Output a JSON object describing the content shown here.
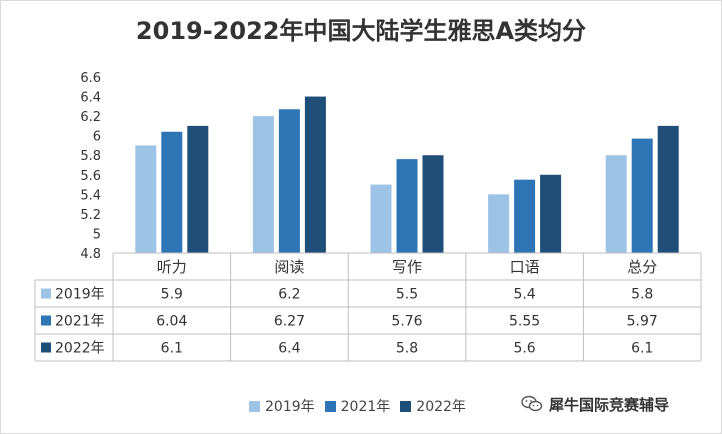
{
  "chart_data": {
    "type": "bar",
    "title": "2019-2022年中国大陆学生雅思A类均分",
    "categories": [
      "听力",
      "阅读",
      "写作",
      "口语",
      "总分"
    ],
    "series": [
      {
        "name": "2019年",
        "values": [
          5.9,
          6.2,
          5.5,
          5.4,
          5.8
        ],
        "color": "#9dc3e6",
        "labels": [
          "5.9",
          "6.2",
          "5.5",
          "5.4",
          "5.8"
        ]
      },
      {
        "name": "2021年",
        "values": [
          6.04,
          6.27,
          5.76,
          5.55,
          5.97
        ],
        "color": "#2e75b6",
        "labels": [
          "6.04",
          "6.27",
          "5.76",
          "5.55",
          "5.97"
        ]
      },
      {
        "name": "2022年",
        "values": [
          6.1,
          6.4,
          5.8,
          5.6,
          6.1
        ],
        "color": "#1f4e79",
        "labels": [
          "6.1",
          "6.4",
          "5.8",
          "5.6",
          "6.1"
        ]
      }
    ],
    "ylim": [
      4.8,
      6.6
    ],
    "yticks": [
      "4.8",
      "5",
      "5.2",
      "5.4",
      "5.6",
      "5.8",
      "6",
      "6.2",
      "6.4",
      "6.6"
    ],
    "grid": false,
    "data_table": true,
    "legend_position": "bottom"
  },
  "watermark": {
    "text": "犀牛国际竞赛辅导",
    "icon": "wechat-icon"
  }
}
